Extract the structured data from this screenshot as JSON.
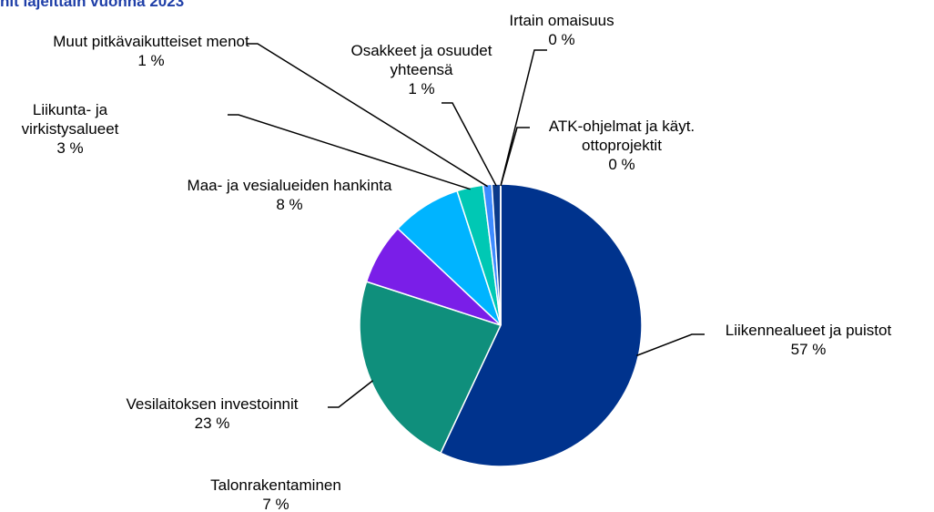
{
  "chart_data": {
    "type": "pie",
    "title": "nit lajeittain vuonna 2023",
    "categories": [
      "Liikennealueet ja puistot",
      "Vesilaitoksen investoinnit",
      "Talonrakentaminen",
      "Maa- ja vesialueiden hankinta",
      "Liikunta- ja virkistysalueet",
      "Muut pitkävaikutteiset menot",
      "Osakkeet ja osuudet yhteensä",
      "Irtain omaisuus",
      "ATK-ohjelmat ja käyt. ottoprojektit"
    ],
    "values": [
      57,
      23,
      7,
      8,
      3,
      1,
      1,
      0,
      0
    ],
    "value_labels": [
      "57 %",
      "23 %",
      "7 %",
      "8 %",
      "3 %",
      "1 %",
      "1 %",
      "0 %",
      "0 %"
    ],
    "colors": [
      "#00338d",
      "#0f8f7c",
      "#7a1ee8",
      "#00b4ff",
      "#00c8b4",
      "#3d8bff",
      "#0a3a8a",
      "#8fb8e8",
      "#5aa0d0"
    ]
  }
}
